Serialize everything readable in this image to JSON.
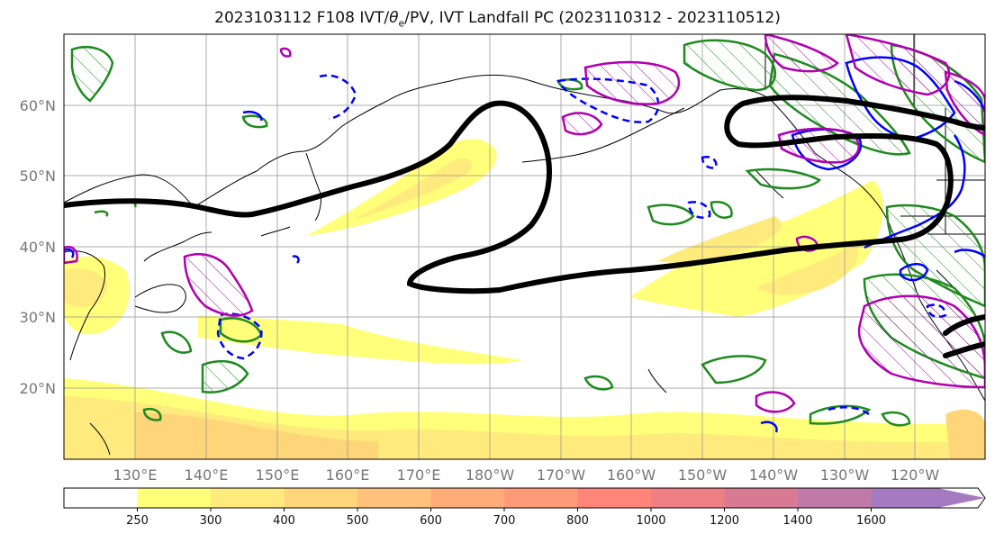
{
  "title": "2023103112 F108 IVT/θe/PV, IVT Landfall PC (2023110312 - 2023110512)",
  "title_parts": {
    "prefix": "2023103112 F108 IVT/",
    "theta": "θ",
    "sub": "e",
    "suffix": "/PV, IVT Landfall PC (2023110312 - 2023110512)"
  },
  "map": {
    "lat_labels": [
      "60°N",
      "50°N",
      "40°N",
      "30°N",
      "20°N"
    ],
    "lon_labels": [
      "130°E",
      "140°E",
      "150°E",
      "160°E",
      "170°E",
      "180°W",
      "170°W",
      "160°W",
      "150°W",
      "140°W",
      "130°W",
      "120°W"
    ]
  },
  "colorbar": {
    "ticks": [
      "250",
      "300",
      "400",
      "500",
      "600",
      "700",
      "800",
      "1000",
      "1200",
      "1400",
      "1600"
    ],
    "colors": [
      "#ffffff",
      "#ffff7a",
      "#ffea7d",
      "#ffd57a",
      "#ffc27a",
      "#ffad78",
      "#ff9a78",
      "#ff8579",
      "#ee7f85",
      "#d97a94",
      "#c07aa8",
      "#a67ac0"
    ]
  },
  "colors": {
    "pv_contour": "#1f8a1f",
    "theta_contour": "#0000ff",
    "pc_contour": "#b000b0",
    "jet_line": "#000000",
    "coastline": "#000000"
  }
}
